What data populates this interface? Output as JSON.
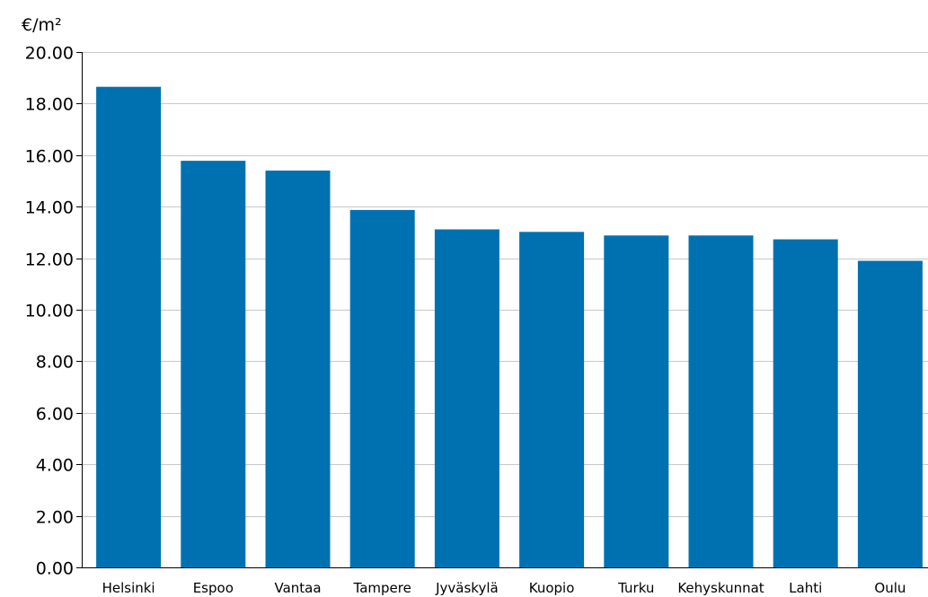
{
  "chart_data": {
    "type": "bar",
    "title": "",
    "xlabel": "",
    "ylabel": "€/m²",
    "ylim": [
      0,
      20
    ],
    "y_ticks": [
      "0.00",
      "2.00",
      "4.00",
      "6.00",
      "8.00",
      "10.00",
      "12.00",
      "14.00",
      "16.00",
      "18.00",
      "20.00"
    ],
    "categories": [
      "Helsinki",
      "Espoo",
      "Vantaa",
      "Tampere",
      "Jyväskylä",
      "Kuopio",
      "Turku",
      "Kehyskunnat",
      "Lahti",
      "Oulu"
    ],
    "values": [
      18.65,
      15.78,
      15.4,
      13.87,
      13.12,
      13.02,
      12.88,
      12.88,
      12.73,
      11.9
    ],
    "grid": true,
    "colors": {
      "bar": "#0071b0",
      "grid": "#c8c8c8",
      "axis": "#000000"
    }
  }
}
